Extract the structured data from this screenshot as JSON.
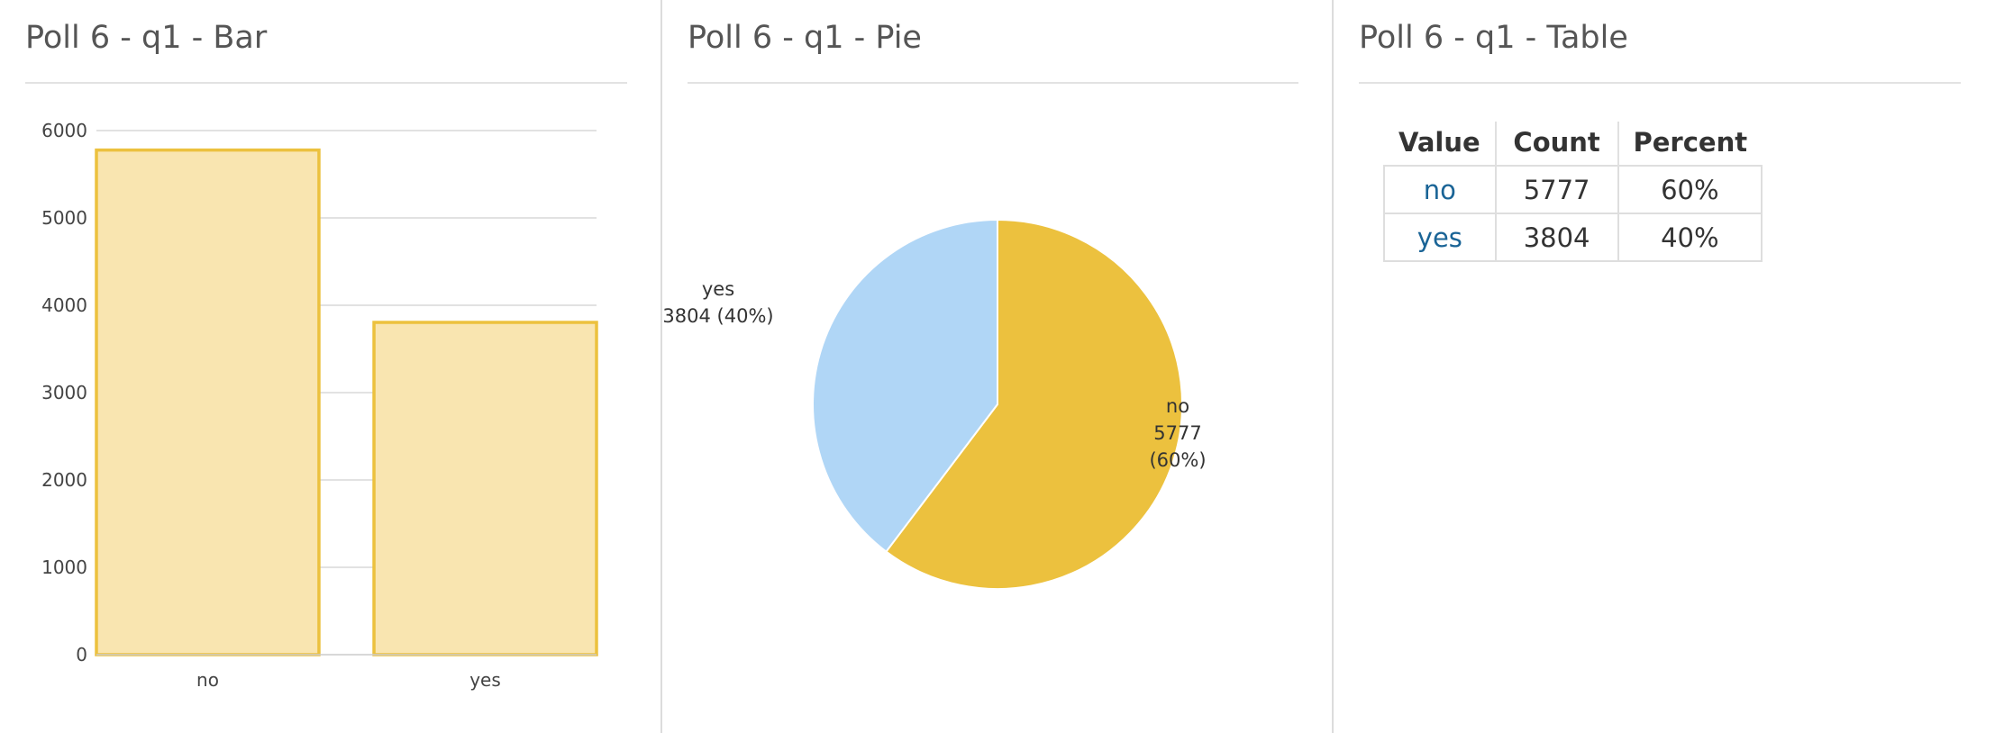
{
  "chart_data": [
    {
      "type": "bar",
      "title": "Poll 6 - q1 - Bar",
      "categories": [
        "no",
        "yes"
      ],
      "values": [
        5777,
        3804
      ],
      "ylim": [
        0,
        6000
      ],
      "yticks": [
        "0",
        "1000",
        "2000",
        "3000",
        "4000",
        "5000",
        "6000"
      ],
      "grid": true,
      "xlabel": "",
      "ylabel": "",
      "colors": {
        "fill": "#f9e5b0",
        "stroke": "#ecc13e",
        "grid": "#d9d9d9"
      }
    },
    {
      "type": "pie",
      "title": "Poll 6 - q1 - Pie",
      "categories": [
        "no",
        "yes"
      ],
      "values": [
        5777,
        3804
      ],
      "labels": [
        {
          "name": "no",
          "count": "5777",
          "percent": "(60%)"
        },
        {
          "name": "yes",
          "count_percent": "3804 (40%)"
        }
      ],
      "colors": [
        "#ecc13e",
        "#b0d6f6"
      ]
    },
    {
      "type": "table",
      "title": "Poll 6 - q1 - Table",
      "columns": [
        "Value",
        "Count",
        "Percent"
      ],
      "rows": [
        [
          "no",
          "5777",
          "60%"
        ],
        [
          "yes",
          "3804",
          "40%"
        ]
      ]
    }
  ]
}
